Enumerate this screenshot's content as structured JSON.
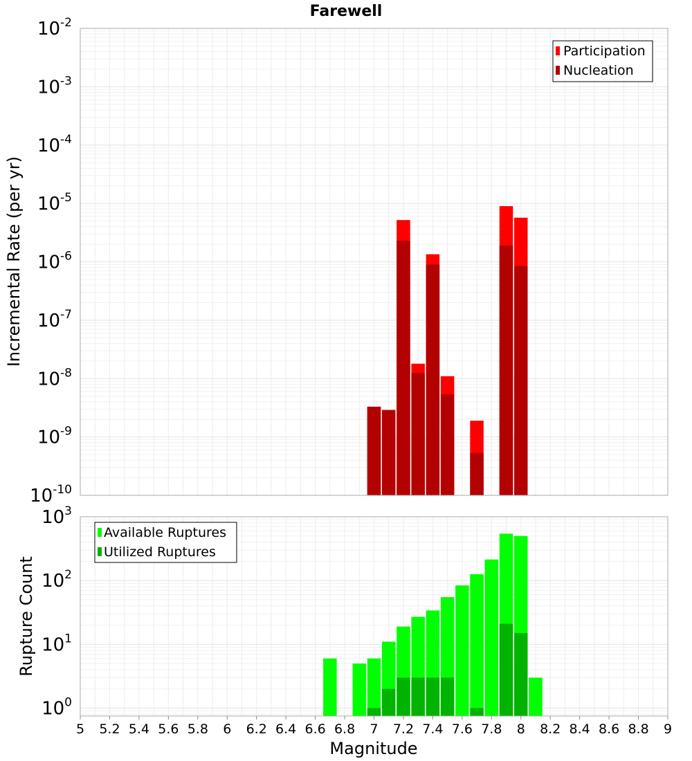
{
  "chart_data": [
    {
      "type": "bar",
      "title": "Farewell",
      "xlabel": "",
      "ylabel": "Incremental Rate (per yr)",
      "yscale": "log",
      "ylim": [
        1e-10,
        0.01
      ],
      "xlim": [
        5,
        9
      ],
      "ytick_labels": [
        {
          "base": "10",
          "exp": "-2"
        },
        {
          "base": "10",
          "exp": "-3"
        },
        {
          "base": "10",
          "exp": "-4"
        },
        {
          "base": "10",
          "exp": "-5"
        },
        {
          "base": "10",
          "exp": "-6"
        },
        {
          "base": "10",
          "exp": "-7"
        },
        {
          "base": "10",
          "exp": "-8"
        },
        {
          "base": "10",
          "exp": "-9"
        },
        {
          "base": "10",
          "exp": "-10"
        }
      ],
      "legend_position": "top-right",
      "series": [
        {
          "name": "Participation",
          "color": "#ff0000",
          "points": [
            {
              "x": 7.0,
              "y": 3.3e-09
            },
            {
              "x": 7.1,
              "y": 2.9e-09
            },
            {
              "x": 7.2,
              "y": 5.2e-06
            },
            {
              "x": 7.3,
              "y": 1.8e-08
            },
            {
              "x": 7.4,
              "y": 1.35e-06
            },
            {
              "x": 7.5,
              "y": 1.1e-08
            },
            {
              "x": 7.7,
              "y": 1.9e-09
            },
            {
              "x": 7.9,
              "y": 9e-06
            },
            {
              "x": 8.0,
              "y": 5.7e-06
            }
          ]
        },
        {
          "name": "Nucleation",
          "color": "#b30000",
          "points": [
            {
              "x": 7.0,
              "y": 3.3e-09
            },
            {
              "x": 7.1,
              "y": 2.9e-09
            },
            {
              "x": 7.2,
              "y": 2.3e-06
            },
            {
              "x": 7.3,
              "y": 1.25e-08
            },
            {
              "x": 7.4,
              "y": 9e-07
            },
            {
              "x": 7.5,
              "y": 5.4e-09
            },
            {
              "x": 7.7,
              "y": 5.3e-10
            },
            {
              "x": 7.9,
              "y": 1.9e-06
            },
            {
              "x": 8.0,
              "y": 8.5e-07
            }
          ]
        }
      ]
    },
    {
      "type": "bar",
      "title": "",
      "xlabel": "Magnitude",
      "ylabel": "Rupture Count",
      "yscale": "log",
      "ylim": [
        0.75,
        1000
      ],
      "xlim": [
        5,
        9
      ],
      "xticks": [
        "5",
        "5.2",
        "5.4",
        "5.6",
        "5.8",
        "6",
        "6.2",
        "6.4",
        "6.6",
        "6.8",
        "7",
        "7.2",
        "7.4",
        "7.6",
        "7.8",
        "8",
        "8.2",
        "8.4",
        "8.6",
        "8.8",
        "9"
      ],
      "ytick_labels": [
        {
          "base": "10",
          "exp": "3"
        },
        {
          "base": "10",
          "exp": "2"
        },
        {
          "base": "10",
          "exp": "1"
        },
        {
          "base": "10",
          "exp": "0"
        }
      ],
      "legend_position": "top-left",
      "series": [
        {
          "name": "Available Ruptures",
          "color": "#00ff00",
          "points": [
            {
              "x": 6.7,
              "y": 6
            },
            {
              "x": 6.9,
              "y": 5
            },
            {
              "x": 7.0,
              "y": 6
            },
            {
              "x": 7.1,
              "y": 11
            },
            {
              "x": 7.2,
              "y": 19
            },
            {
              "x": 7.3,
              "y": 27
            },
            {
              "x": 7.4,
              "y": 34
            },
            {
              "x": 7.5,
              "y": 55
            },
            {
              "x": 7.6,
              "y": 84
            },
            {
              "x": 7.7,
              "y": 126
            },
            {
              "x": 7.8,
              "y": 214
            },
            {
              "x": 7.9,
              "y": 544
            },
            {
              "x": 8.0,
              "y": 500
            },
            {
              "x": 8.1,
              "y": 3
            }
          ]
        },
        {
          "name": "Utilized Ruptures",
          "color": "#00b300",
          "points": [
            {
              "x": 7.0,
              "y": 1
            },
            {
              "x": 7.1,
              "y": 2
            },
            {
              "x": 7.2,
              "y": 3
            },
            {
              "x": 7.3,
              "y": 3
            },
            {
              "x": 7.4,
              "y": 3
            },
            {
              "x": 7.5,
              "y": 3
            },
            {
              "x": 7.7,
              "y": 1
            },
            {
              "x": 7.9,
              "y": 21
            },
            {
              "x": 8.0,
              "y": 15
            }
          ]
        }
      ]
    }
  ]
}
